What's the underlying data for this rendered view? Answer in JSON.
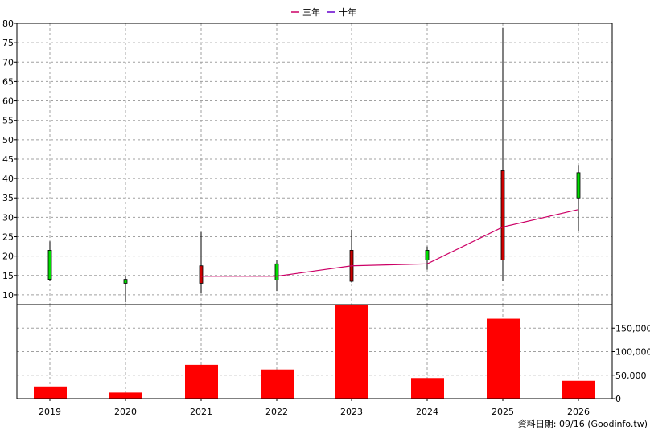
{
  "legend": {
    "items": [
      {
        "label": "三年",
        "color": "#cc0066"
      },
      {
        "label": "十年",
        "color": "#6600cc"
      }
    ]
  },
  "footer": {
    "source_text": "資料日期: 09/16  (Goodinfo.tw)"
  },
  "chart_data": [
    {
      "type": "candlestick",
      "x_axis": {
        "ticks": [
          "2019",
          "2020",
          "2021",
          "2022",
          "2023",
          "2024",
          "2025",
          "2026"
        ]
      },
      "y_axis": {
        "ylim": [
          7.5,
          80
        ],
        "ticks": [
          10,
          15,
          20,
          25,
          30,
          35,
          40,
          45,
          50,
          55,
          60,
          65,
          70,
          75,
          80
        ]
      },
      "grid": true,
      "candles": [
        {
          "year": "2019",
          "open": 14.0,
          "high": 23.8,
          "low": 13.5,
          "close": 21.5,
          "color": "green"
        },
        {
          "year": "2020",
          "open": 13.0,
          "high": 15.0,
          "low": 8.1,
          "close": 14.0,
          "color": "green"
        },
        {
          "year": "2021",
          "open": 17.5,
          "high": 26.2,
          "low": 10.5,
          "close": 13.0,
          "color": "red"
        },
        {
          "year": "2022",
          "open": 13.8,
          "high": 19.0,
          "low": 11.0,
          "close": 18.0,
          "color": "green"
        },
        {
          "year": "2023",
          "open": 21.5,
          "high": 26.8,
          "low": 13.2,
          "close": 13.5,
          "color": "red"
        },
        {
          "year": "2024",
          "open": 19.0,
          "high": 22.5,
          "low": 16.5,
          "close": 21.5,
          "color": "green"
        },
        {
          "year": "2025",
          "open": 42.0,
          "high": 78.8,
          "low": 13.5,
          "close": 19.0,
          "color": "red"
        },
        {
          "year": "2026",
          "open": 35.0,
          "high": 43.5,
          "low": 26.5,
          "close": 41.5,
          "color": "green"
        }
      ],
      "series": [
        {
          "name": "三年",
          "color": "#cc0066",
          "points": [
            [
              "2021",
              14.8
            ],
            [
              "2022",
              14.8
            ],
            [
              "2023",
              17.5
            ],
            [
              "2024",
              18.0
            ],
            [
              "2025",
              27.5
            ],
            [
              "2026",
              32.0
            ]
          ]
        }
      ]
    },
    {
      "type": "bar",
      "categories": [
        "2019",
        "2020",
        "2021",
        "2022",
        "2023",
        "2024",
        "2025",
        "2026"
      ],
      "values": [
        26000,
        13000,
        72000,
        62000,
        200000,
        44000,
        170000,
        38000
      ],
      "color": "#ff0000",
      "y_axis": {
        "ylim": [
          0,
          200000
        ],
        "ticks": [
          0,
          50000,
          100000,
          150000
        ],
        "tick_labels": [
          "0",
          "50,000",
          "100,000",
          "150,000"
        ]
      },
      "grid": true
    }
  ]
}
